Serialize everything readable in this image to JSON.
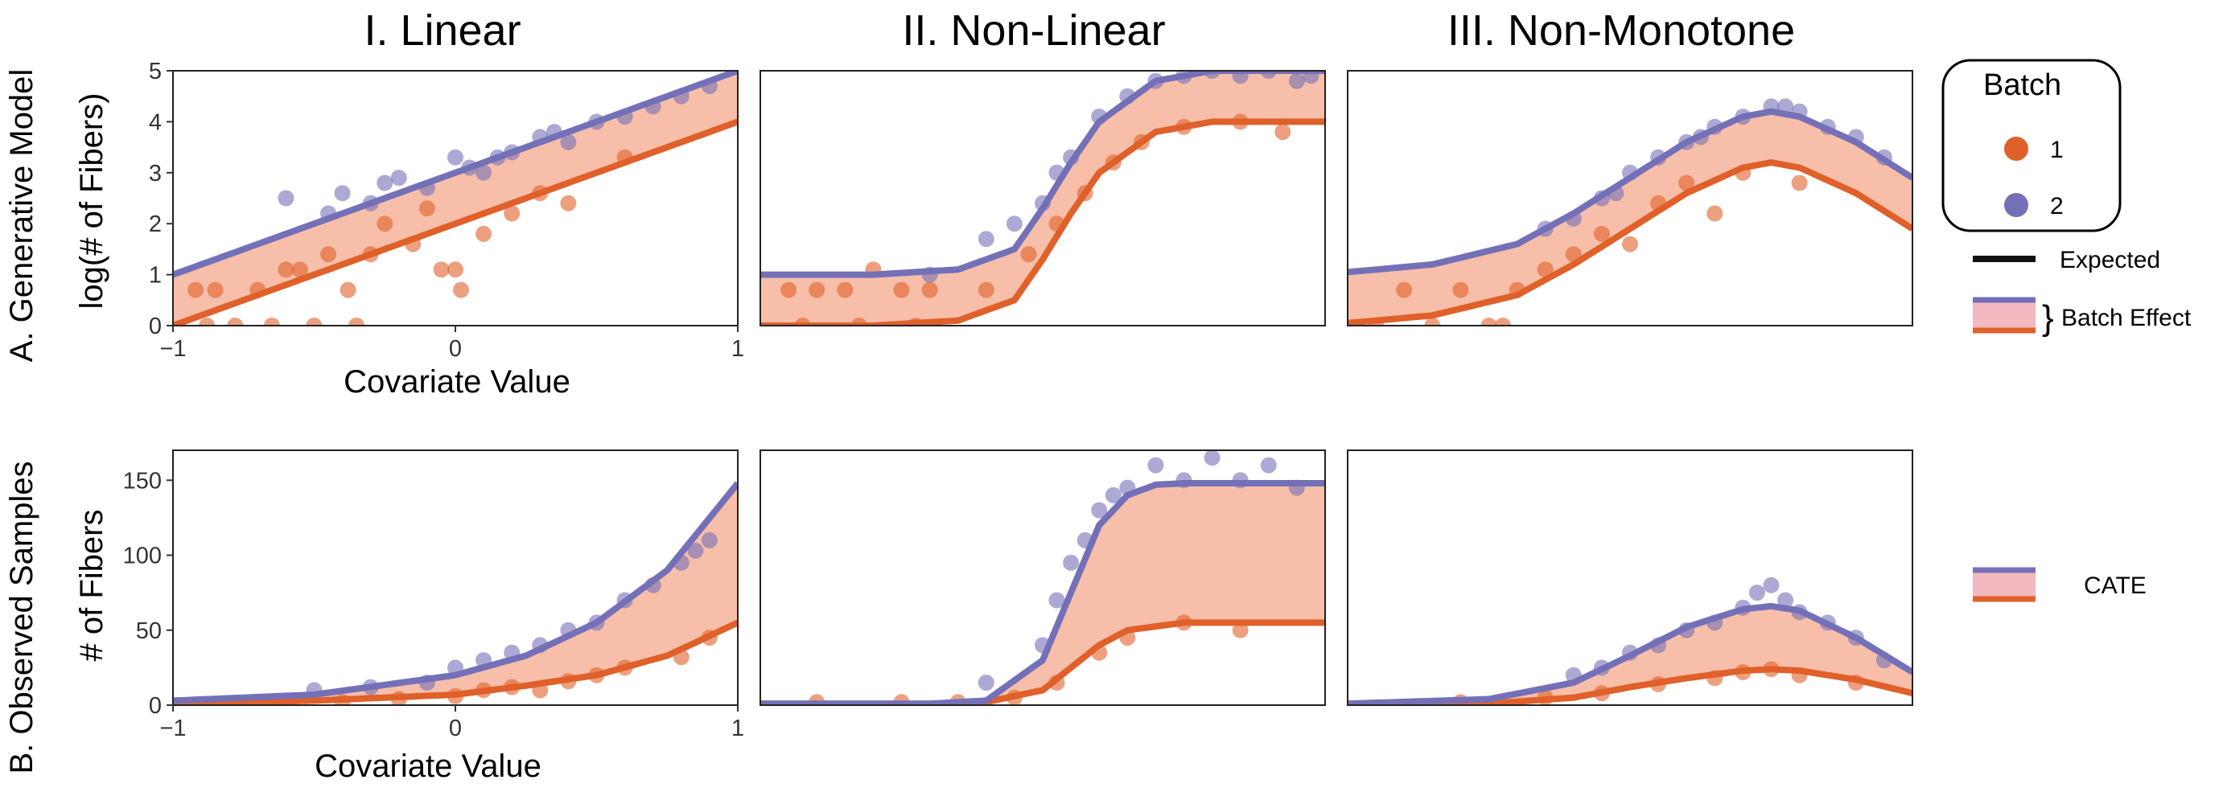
{
  "colors": {
    "batch1": "#E0602A",
    "batch2": "#7470B8",
    "ribbon": "#F6B49A",
    "ribbon_legend": "#F4B8C0",
    "expected": "#111111"
  },
  "columns": [
    "I. Linear",
    "II. Non-Linear",
    "III. Non-Monotone"
  ],
  "rows": [
    {
      "label": "A. Generative Model",
      "ylabel": "log(# of Fibers)"
    },
    {
      "label": "B. Observed Samples",
      "ylabel": "# of Fibers"
    }
  ],
  "xlabel": "Covariate Value",
  "legend": {
    "title": "Batch",
    "items": [
      {
        "label": "1"
      },
      {
        "label": "2"
      }
    ],
    "expected_label": "Expected",
    "batch_effect_label": "Batch Effect",
    "cate_label": "CATE"
  },
  "chart_data": [
    {
      "type": "scatter",
      "panel": "A-I",
      "xlim": [
        -1,
        1
      ],
      "ylim": [
        0,
        5
      ],
      "xticks": [
        -1,
        0,
        1
      ],
      "yticks": [
        0,
        1,
        2,
        3,
        4,
        5
      ],
      "curves": [
        {
          "name": "1",
          "x": [
            -1,
            1
          ],
          "y": [
            0,
            4
          ]
        },
        {
          "name": "2",
          "x": [
            -1,
            1
          ],
          "y": [
            1,
            5
          ]
        }
      ],
      "points": [
        {
          "batch": "1",
          "x": [
            -0.92,
            -0.85,
            -0.78,
            -0.7,
            -0.6,
            -0.5,
            -0.45,
            -0.38,
            -0.3,
            -0.25,
            -0.15,
            -0.1,
            -0.05,
            0.02,
            0.1,
            0.2,
            0.3,
            0.4,
            0.6,
            -0.55,
            -0.35,
            -0.65,
            0.0,
            -0.88
          ],
          "y": [
            0.7,
            0.7,
            0.0,
            0.7,
            1.1,
            0.0,
            1.4,
            0.7,
            1.4,
            2.0,
            1.6,
            2.3,
            1.1,
            0.7,
            1.8,
            2.2,
            2.6,
            2.4,
            3.3,
            1.1,
            0.0,
            0.0,
            1.1,
            0.0
          ]
        },
        {
          "batch": "2",
          "x": [
            -0.45,
            -0.4,
            -0.3,
            -0.2,
            -0.1,
            0.0,
            0.05,
            0.1,
            0.2,
            0.3,
            0.4,
            0.5,
            0.6,
            0.7,
            0.8,
            0.9,
            -0.6,
            -0.25,
            0.15,
            0.35
          ],
          "y": [
            2.2,
            2.6,
            2.4,
            2.9,
            2.7,
            3.3,
            3.1,
            3.0,
            3.4,
            3.7,
            3.6,
            4.0,
            4.1,
            4.3,
            4.5,
            4.7,
            2.5,
            2.8,
            3.3,
            3.8
          ]
        }
      ]
    },
    {
      "type": "scatter",
      "panel": "A-II",
      "xlim": [
        -1,
        1
      ],
      "ylim": [
        0,
        5
      ],
      "curves": [
        {
          "name": "1",
          "x": [
            -1,
            -0.6,
            -0.3,
            -0.1,
            0.0,
            0.1,
            0.2,
            0.4,
            0.6,
            1.0
          ],
          "y": [
            0.0,
            0.0,
            0.1,
            0.5,
            1.3,
            2.2,
            3.0,
            3.8,
            4.0,
            4.0
          ]
        },
        {
          "name": "2",
          "x": [
            -1,
            -0.6,
            -0.3,
            -0.1,
            0.0,
            0.1,
            0.2,
            0.4,
            0.6,
            1.0
          ],
          "y": [
            1.0,
            1.0,
            1.1,
            1.5,
            2.3,
            3.2,
            4.0,
            4.8,
            5.0,
            5.0
          ]
        }
      ],
      "points": [
        {
          "batch": "1",
          "x": [
            -0.9,
            -0.8,
            -0.7,
            -0.6,
            -0.5,
            -0.4,
            -0.85,
            -0.65,
            -0.45,
            -0.2,
            -0.05,
            0.05,
            0.15,
            0.25,
            0.35,
            0.5,
            0.7,
            0.85
          ],
          "y": [
            0.7,
            0.7,
            0.7,
            1.1,
            0.7,
            0.7,
            0.0,
            0.0,
            0.0,
            0.7,
            1.4,
            2.0,
            2.6,
            3.2,
            3.6,
            3.9,
            4.0,
            3.8
          ]
        },
        {
          "batch": "2",
          "x": [
            -0.4,
            -0.2,
            -0.1,
            0.0,
            0.05,
            0.1,
            0.2,
            0.3,
            0.4,
            0.5,
            0.6,
            0.7,
            0.8,
            0.9,
            0.95
          ],
          "y": [
            1.0,
            1.7,
            2.0,
            2.4,
            3.0,
            3.3,
            4.1,
            4.5,
            4.8,
            4.9,
            5.0,
            4.9,
            5.0,
            4.8,
            4.9
          ]
        }
      ]
    },
    {
      "type": "scatter",
      "panel": "A-III",
      "xlim": [
        -1,
        1
      ],
      "ylim": [
        0,
        5
      ],
      "curves": [
        {
          "name": "1",
          "x": [
            -1,
            -0.7,
            -0.4,
            -0.2,
            0.0,
            0.2,
            0.4,
            0.5,
            0.6,
            0.8,
            1.0
          ],
          "y": [
            0.05,
            0.2,
            0.6,
            1.2,
            1.9,
            2.6,
            3.1,
            3.2,
            3.1,
            2.6,
            1.9
          ]
        },
        {
          "name": "2",
          "x": [
            -1,
            -0.7,
            -0.4,
            -0.2,
            0.0,
            0.2,
            0.4,
            0.5,
            0.6,
            0.8,
            1.0
          ],
          "y": [
            1.05,
            1.2,
            1.6,
            2.2,
            2.9,
            3.6,
            4.1,
            4.2,
            4.1,
            3.6,
            2.9
          ]
        }
      ],
      "points": [
        {
          "batch": "1",
          "x": [
            -0.8,
            -0.7,
            -0.6,
            -0.5,
            -0.4,
            -0.3,
            -0.2,
            -0.1,
            0.0,
            0.1,
            0.2,
            0.3,
            0.4,
            0.6,
            -0.9,
            -0.45
          ],
          "y": [
            0.7,
            0.0,
            0.7,
            0.0,
            0.7,
            1.1,
            1.4,
            1.8,
            1.6,
            2.4,
            2.8,
            2.2,
            3.0,
            2.8,
            0.0,
            0.0
          ]
        },
        {
          "batch": "2",
          "x": [
            -0.3,
            -0.2,
            -0.1,
            0.0,
            0.1,
            0.2,
            0.3,
            0.4,
            0.5,
            0.6,
            0.7,
            0.8,
            0.9,
            -0.05,
            0.25,
            0.55
          ],
          "y": [
            1.9,
            2.1,
            2.5,
            3.0,
            3.3,
            3.6,
            3.9,
            4.1,
            4.3,
            4.2,
            3.9,
            3.7,
            3.3,
            2.6,
            3.7,
            4.3
          ]
        }
      ]
    },
    {
      "type": "scatter",
      "panel": "B-I",
      "xlim": [
        -1,
        1
      ],
      "ylim": [
        0,
        170
      ],
      "xticks": [
        -1,
        0,
        1
      ],
      "yticks": [
        0,
        50,
        100,
        150
      ],
      "curves": [
        {
          "name": "1",
          "x": [
            -1,
            -0.5,
            0.0,
            0.25,
            0.5,
            0.75,
            1.0
          ],
          "y": [
            1,
            3,
            7,
            13,
            20,
            33,
            55
          ]
        },
        {
          "name": "2",
          "x": [
            -1,
            -0.5,
            0.0,
            0.25,
            0.5,
            0.75,
            1.0
          ],
          "y": [
            3,
            7,
            20,
            33,
            55,
            90,
            148
          ]
        }
      ],
      "points": [
        {
          "batch": "1",
          "x": [
            -0.8,
            -0.6,
            -0.4,
            -0.2,
            0.0,
            0.1,
            0.2,
            0.3,
            0.4,
            0.5,
            0.6,
            0.8,
            0.9
          ],
          "y": [
            1,
            2,
            2,
            4,
            6,
            10,
            12,
            10,
            16,
            20,
            25,
            32,
            45
          ]
        },
        {
          "batch": "2",
          "x": [
            -0.5,
            -0.3,
            -0.1,
            0.0,
            0.1,
            0.2,
            0.3,
            0.4,
            0.5,
            0.6,
            0.7,
            0.8,
            0.85,
            0.9
          ],
          "y": [
            10,
            12,
            15,
            25,
            30,
            35,
            40,
            50,
            55,
            70,
            80,
            95,
            103,
            110
          ]
        }
      ]
    },
    {
      "type": "scatter",
      "panel": "B-II",
      "xlim": [
        -1,
        1
      ],
      "ylim": [
        0,
        170
      ],
      "curves": [
        {
          "name": "1",
          "x": [
            -1,
            -0.4,
            -0.2,
            0.0,
            0.1,
            0.2,
            0.3,
            0.5,
            1.0
          ],
          "y": [
            0,
            0,
            2,
            10,
            25,
            40,
            50,
            55,
            55
          ]
        },
        {
          "name": "2",
          "x": [
            -1,
            -0.4,
            -0.2,
            0.0,
            0.1,
            0.2,
            0.3,
            0.4,
            0.5,
            1.0
          ],
          "y": [
            1,
            1,
            3,
            30,
            75,
            120,
            140,
            147,
            148,
            148
          ]
        }
      ],
      "points": [
        {
          "batch": "1",
          "x": [
            -0.8,
            -0.5,
            -0.3,
            -0.1,
            0.05,
            0.2,
            0.3,
            0.5,
            0.7
          ],
          "y": [
            2,
            2,
            2,
            5,
            15,
            35,
            45,
            55,
            50
          ]
        },
        {
          "batch": "2",
          "x": [
            -0.2,
            0.0,
            0.05,
            0.1,
            0.15,
            0.2,
            0.25,
            0.3,
            0.4,
            0.5,
            0.6,
            0.7,
            0.8,
            0.9
          ],
          "y": [
            15,
            40,
            70,
            95,
            110,
            130,
            140,
            145,
            160,
            150,
            165,
            150,
            160,
            145
          ]
        }
      ]
    },
    {
      "type": "scatter",
      "panel": "B-III",
      "xlim": [
        -1,
        1
      ],
      "ylim": [
        0,
        170
      ],
      "curves": [
        {
          "name": "1",
          "x": [
            -1,
            -0.5,
            -0.2,
            0.0,
            0.2,
            0.4,
            0.5,
            0.6,
            0.8,
            1.0
          ],
          "y": [
            0,
            1,
            5,
            12,
            18,
            23,
            24,
            23,
            17,
            8
          ]
        },
        {
          "name": "2",
          "x": [
            -1,
            -0.5,
            -0.2,
            0.0,
            0.2,
            0.4,
            0.5,
            0.6,
            0.8,
            1.0
          ],
          "y": [
            1,
            4,
            15,
            33,
            52,
            64,
            66,
            63,
            45,
            22
          ]
        }
      ],
      "points": [
        {
          "batch": "1",
          "x": [
            -0.6,
            -0.3,
            -0.1,
            0.1,
            0.3,
            0.4,
            0.5,
            0.6,
            0.8
          ],
          "y": [
            2,
            5,
            8,
            14,
            18,
            22,
            24,
            20,
            15
          ]
        },
        {
          "batch": "2",
          "x": [
            -0.2,
            -0.1,
            0.0,
            0.1,
            0.2,
            0.3,
            0.4,
            0.45,
            0.5,
            0.55,
            0.6,
            0.7,
            0.8,
            0.9
          ],
          "y": [
            20,
            25,
            35,
            40,
            50,
            55,
            65,
            75,
            80,
            70,
            62,
            55,
            45,
            30
          ]
        }
      ]
    }
  ]
}
